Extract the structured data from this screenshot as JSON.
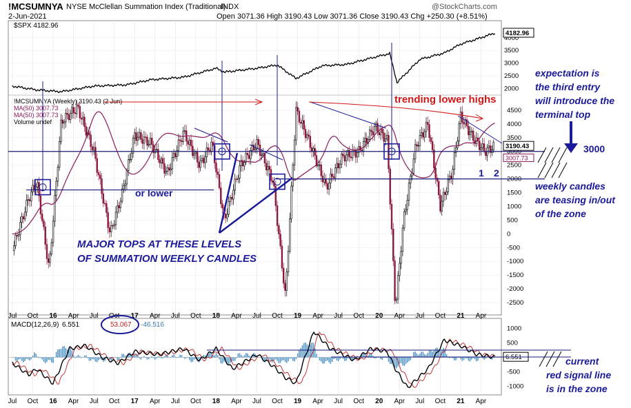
{
  "header": {
    "symbol": "!MCSUMNYA",
    "name": "NYSE McClellan Summation Index (Traditional)",
    "exchange": "INDX",
    "date": "2-Jun-2021",
    "ohlc": "Open 3071.36   High 3190.43   Low 3071.36   Close 3190.43   Chg +250.30 (+8.51%)",
    "credit": "@StockCharts.com"
  },
  "colors": {
    "candle_up": "#000000",
    "candle_down": "#8b1a3a",
    "ma": "#8b1a5a",
    "annotation": "#1a1a9a",
    "trend_red": "#d01818",
    "histogram": "#5a9ac8",
    "zone_line": "#1a1a7a"
  },
  "chart_data": [
    {
      "type": "line",
      "panel": "SPX overlay",
      "legend": "$SPX 4182.96",
      "last_value_label": "4182.96",
      "y_ticks": [
        "2000",
        "2500",
        "3000",
        "3500",
        "4000"
      ],
      "ylim": [
        1800,
        4400
      ],
      "x": [
        2015.5,
        2015.8,
        2016.1,
        2016.5,
        2016.9,
        2017.2,
        2017.6,
        2018.0,
        2018.1,
        2018.5,
        2018.75,
        2018.98,
        2019.3,
        2019.6,
        2019.9,
        2020.13,
        2020.22,
        2020.5,
        2020.8,
        2021.0,
        2021.2,
        2021.42
      ],
      "values": [
        2100,
        1950,
        1880,
        2100,
        2150,
        2350,
        2450,
        2800,
        2650,
        2800,
        2930,
        2400,
        2900,
        2950,
        3200,
        3380,
        2240,
        3150,
        3400,
        3750,
        3950,
        4183
      ]
    },
    {
      "type": "candlestick",
      "panel": "Summation Index (Weekly)",
      "legend": [
        "!MCSUMNYA (Weekly) 3190.43 (2 Jun)",
        "MA(50) 3007.73",
        "MA(50) 3007.73",
        "Volume undef"
      ],
      "y_ticks": [
        "-2500",
        "-2000",
        "-1500",
        "-1000",
        "-500",
        "0",
        "500",
        "1000",
        "1500",
        "2000",
        "2500",
        "3000",
        "3500",
        "4000",
        "4500"
      ],
      "ylim": [
        -2900,
        5000
      ],
      "last_value_label": "3190.43",
      "ma_label": "3007.73",
      "x": [
        2015.5,
        2015.7,
        2015.8,
        2015.95,
        2016.1,
        2016.3,
        2016.5,
        2016.7,
        2016.85,
        2017.0,
        2017.2,
        2017.4,
        2017.6,
        2017.8,
        2017.95,
        2018.1,
        2018.3,
        2018.5,
        2018.7,
        2018.85,
        2018.98,
        2019.15,
        2019.35,
        2019.55,
        2019.75,
        2019.95,
        2020.1,
        2020.2,
        2020.3,
        2020.45,
        2020.6,
        2020.75,
        2020.9,
        2021.0,
        2021.15,
        2021.3,
        2021.42
      ],
      "values": [
        -600,
        1300,
        1900,
        -1300,
        4100,
        4600,
        3000,
        0,
        1500,
        3600,
        3300,
        2200,
        3700,
        2500,
        3300,
        500,
        2500,
        3300,
        1900,
        -2300,
        4500,
        3300,
        1700,
        2800,
        3000,
        3900,
        3400,
        -2700,
        500,
        3200,
        4000,
        1000,
        2300,
        4300,
        3500,
        3000,
        3190
      ]
    },
    {
      "type": "line",
      "panel": "MACD",
      "legend": "MACD(12,26,9) 6.551, 53.067, -46.516",
      "macd_values": [
        "6.551",
        "53.067",
        "-46.516"
      ],
      "last_value_label": "6.551",
      "y_ticks": [
        "-1000",
        "-500",
        "0",
        "500",
        "1000"
      ],
      "ylim": [
        -1250,
        1250
      ],
      "x": [
        2015.5,
        2015.7,
        2015.8,
        2016.0,
        2016.2,
        2016.4,
        2016.6,
        2016.8,
        2017.0,
        2017.3,
        2017.6,
        2017.8,
        2018.0,
        2018.2,
        2018.5,
        2018.7,
        2018.85,
        2018.98,
        2019.2,
        2019.4,
        2019.7,
        2019.9,
        2020.1,
        2020.2,
        2020.35,
        2020.6,
        2020.8,
        2021.0,
        2021.2,
        2021.42
      ],
      "values": [
        -200,
        -600,
        -400,
        -900,
        300,
        400,
        0,
        -200,
        200,
        100,
        300,
        -100,
        300,
        -400,
        100,
        -300,
        -700,
        -900,
        900,
        300,
        -100,
        300,
        200,
        -400,
        -1050,
        -400,
        600,
        400,
        100,
        7
      ]
    }
  ],
  "x_axis_labels": [
    "Jul",
    "Oct",
    "16",
    "Apr",
    "Jul",
    "Oct",
    "17",
    "Apr",
    "Jul",
    "Oct",
    "18",
    "Apr",
    "Jul",
    "Oct",
    "19",
    "Apr",
    "Jul",
    "Oct",
    "20",
    "Apr",
    "Jul",
    "Oct",
    "21",
    "Apr"
  ],
  "annotations": {
    "trending": "trending lower highs",
    "expectation": [
      "expectation is",
      "the third entry",
      "will introduce the",
      "terminal top"
    ],
    "level": "3000",
    "or_lower": "or lower",
    "major_tops": [
      "MAJOR TOPS AT THESE LEVELS",
      "OF SUMMATION WEEKLY CANDLES"
    ],
    "teasing": [
      "weekly candles",
      "are teasing in/out",
      "of the zone"
    ],
    "entry1": "1",
    "entry2": "2",
    "current": [
      "current",
      "red signal line",
      "is in the zone"
    ]
  }
}
